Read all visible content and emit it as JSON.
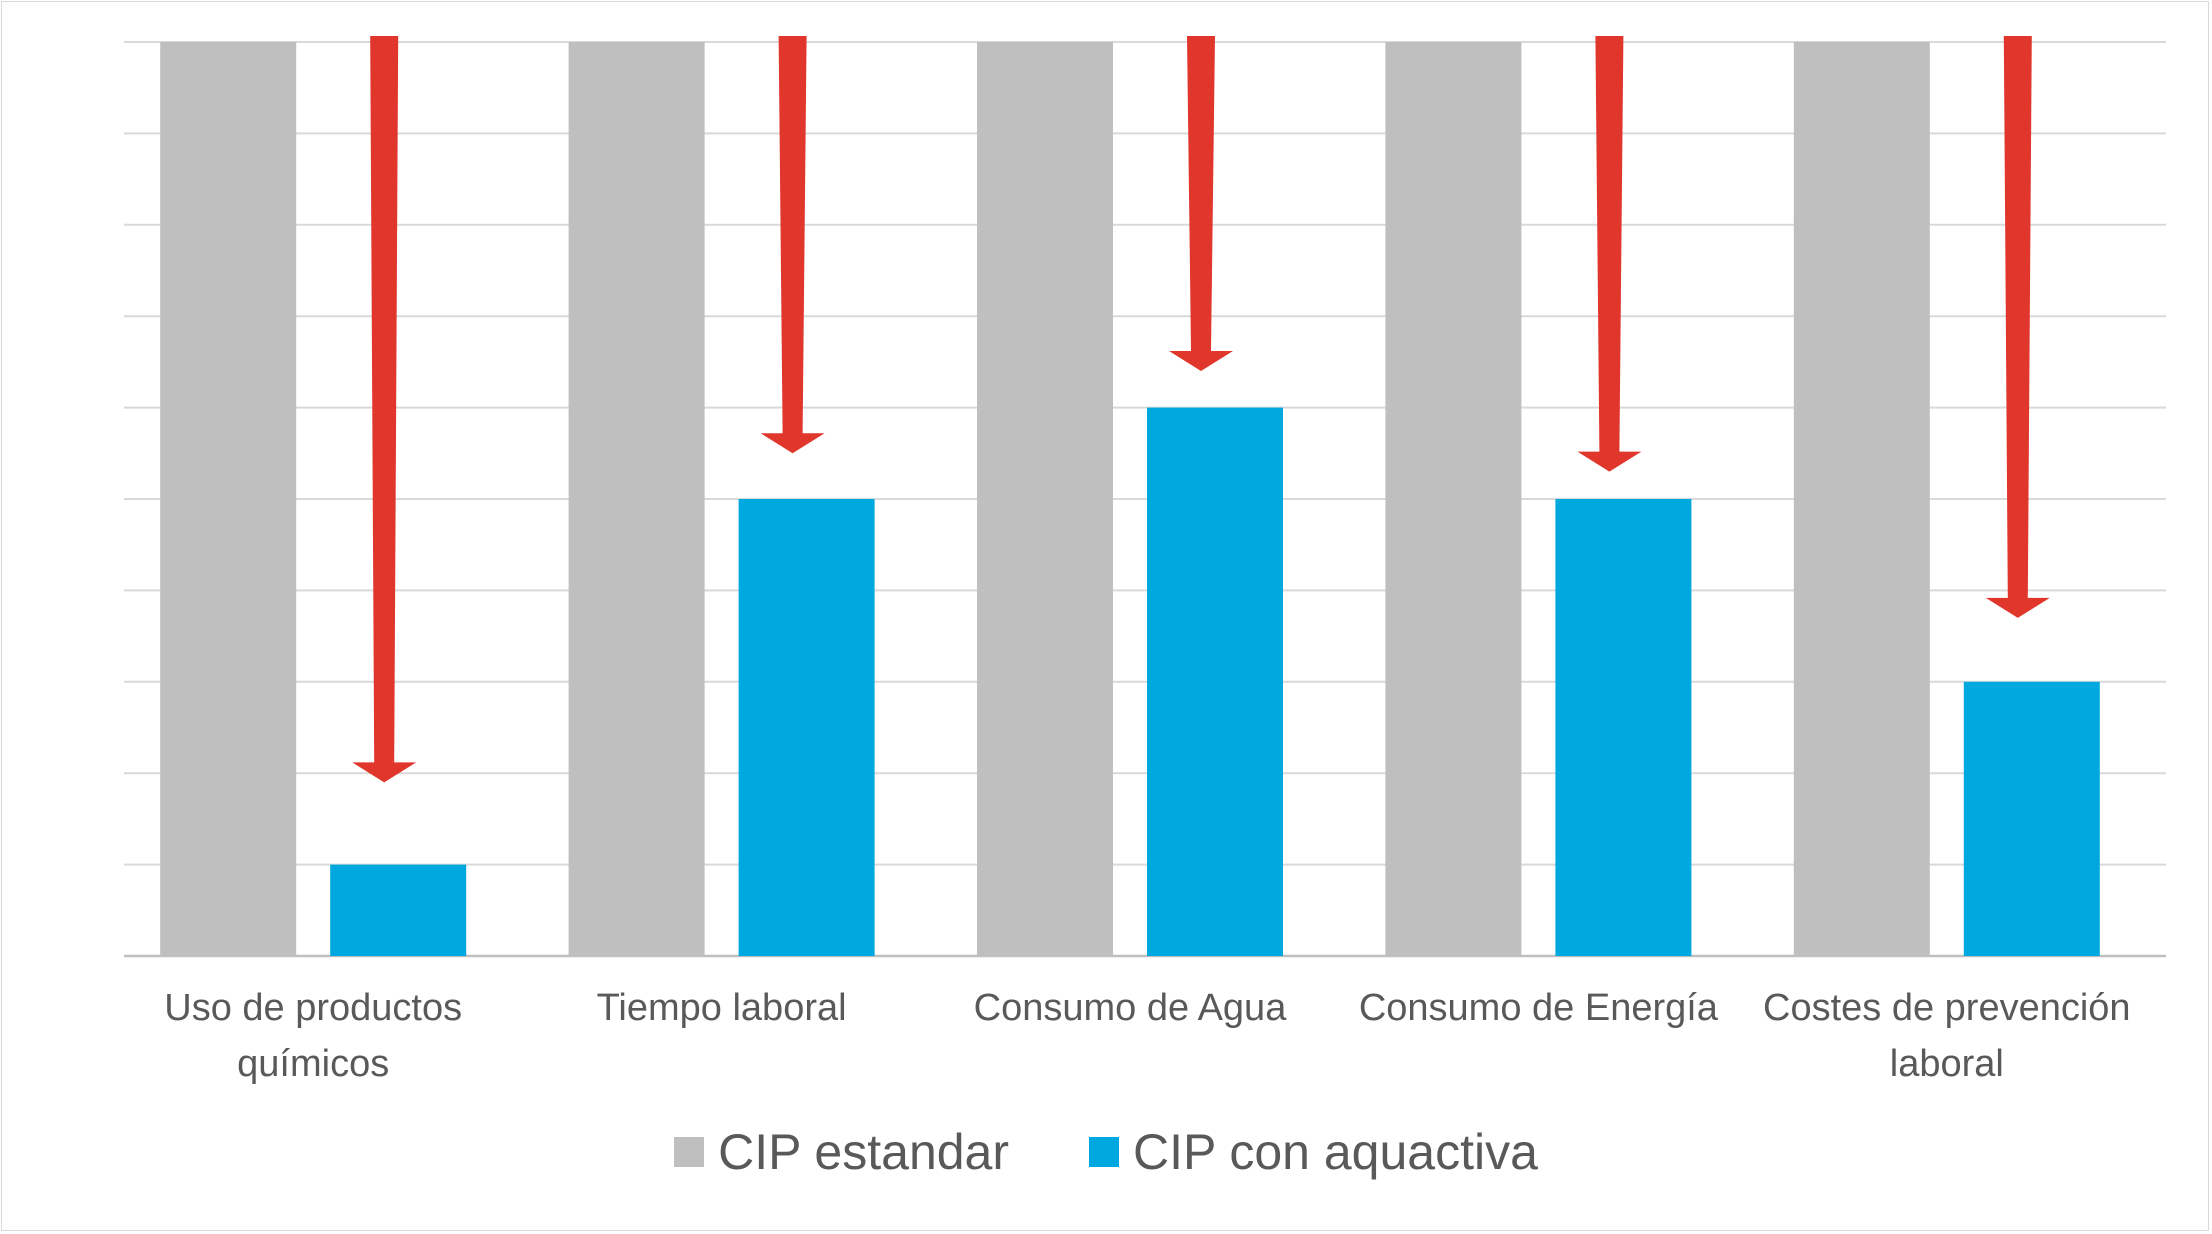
{
  "chart_data": {
    "type": "bar",
    "title": "",
    "xlabel": "",
    "ylabel": "",
    "ylim": [
      0,
      10
    ],
    "grid": true,
    "legend": "bottom-center",
    "categories": [
      "Uso de productos químicos",
      "Tiempo laboral",
      "Consumo de Agua",
      "Consumo de Energía",
      "Costes de prevención laboral"
    ],
    "series": [
      {
        "name": "CIP estandar",
        "color": "#bfbfbf",
        "values": [
          10,
          10,
          10,
          10,
          10
        ]
      },
      {
        "name": "CIP con aquactiva",
        "color": "#00a8e0",
        "values": [
          1,
          5,
          6,
          5,
          3
        ]
      }
    ],
    "annotations": {
      "type": "down-arrow",
      "color": "#e0362c",
      "from": [
        10,
        10,
        10,
        10,
        10
      ],
      "to": [
        1.9,
        5.5,
        6.4,
        5.3,
        3.7
      ]
    }
  }
}
